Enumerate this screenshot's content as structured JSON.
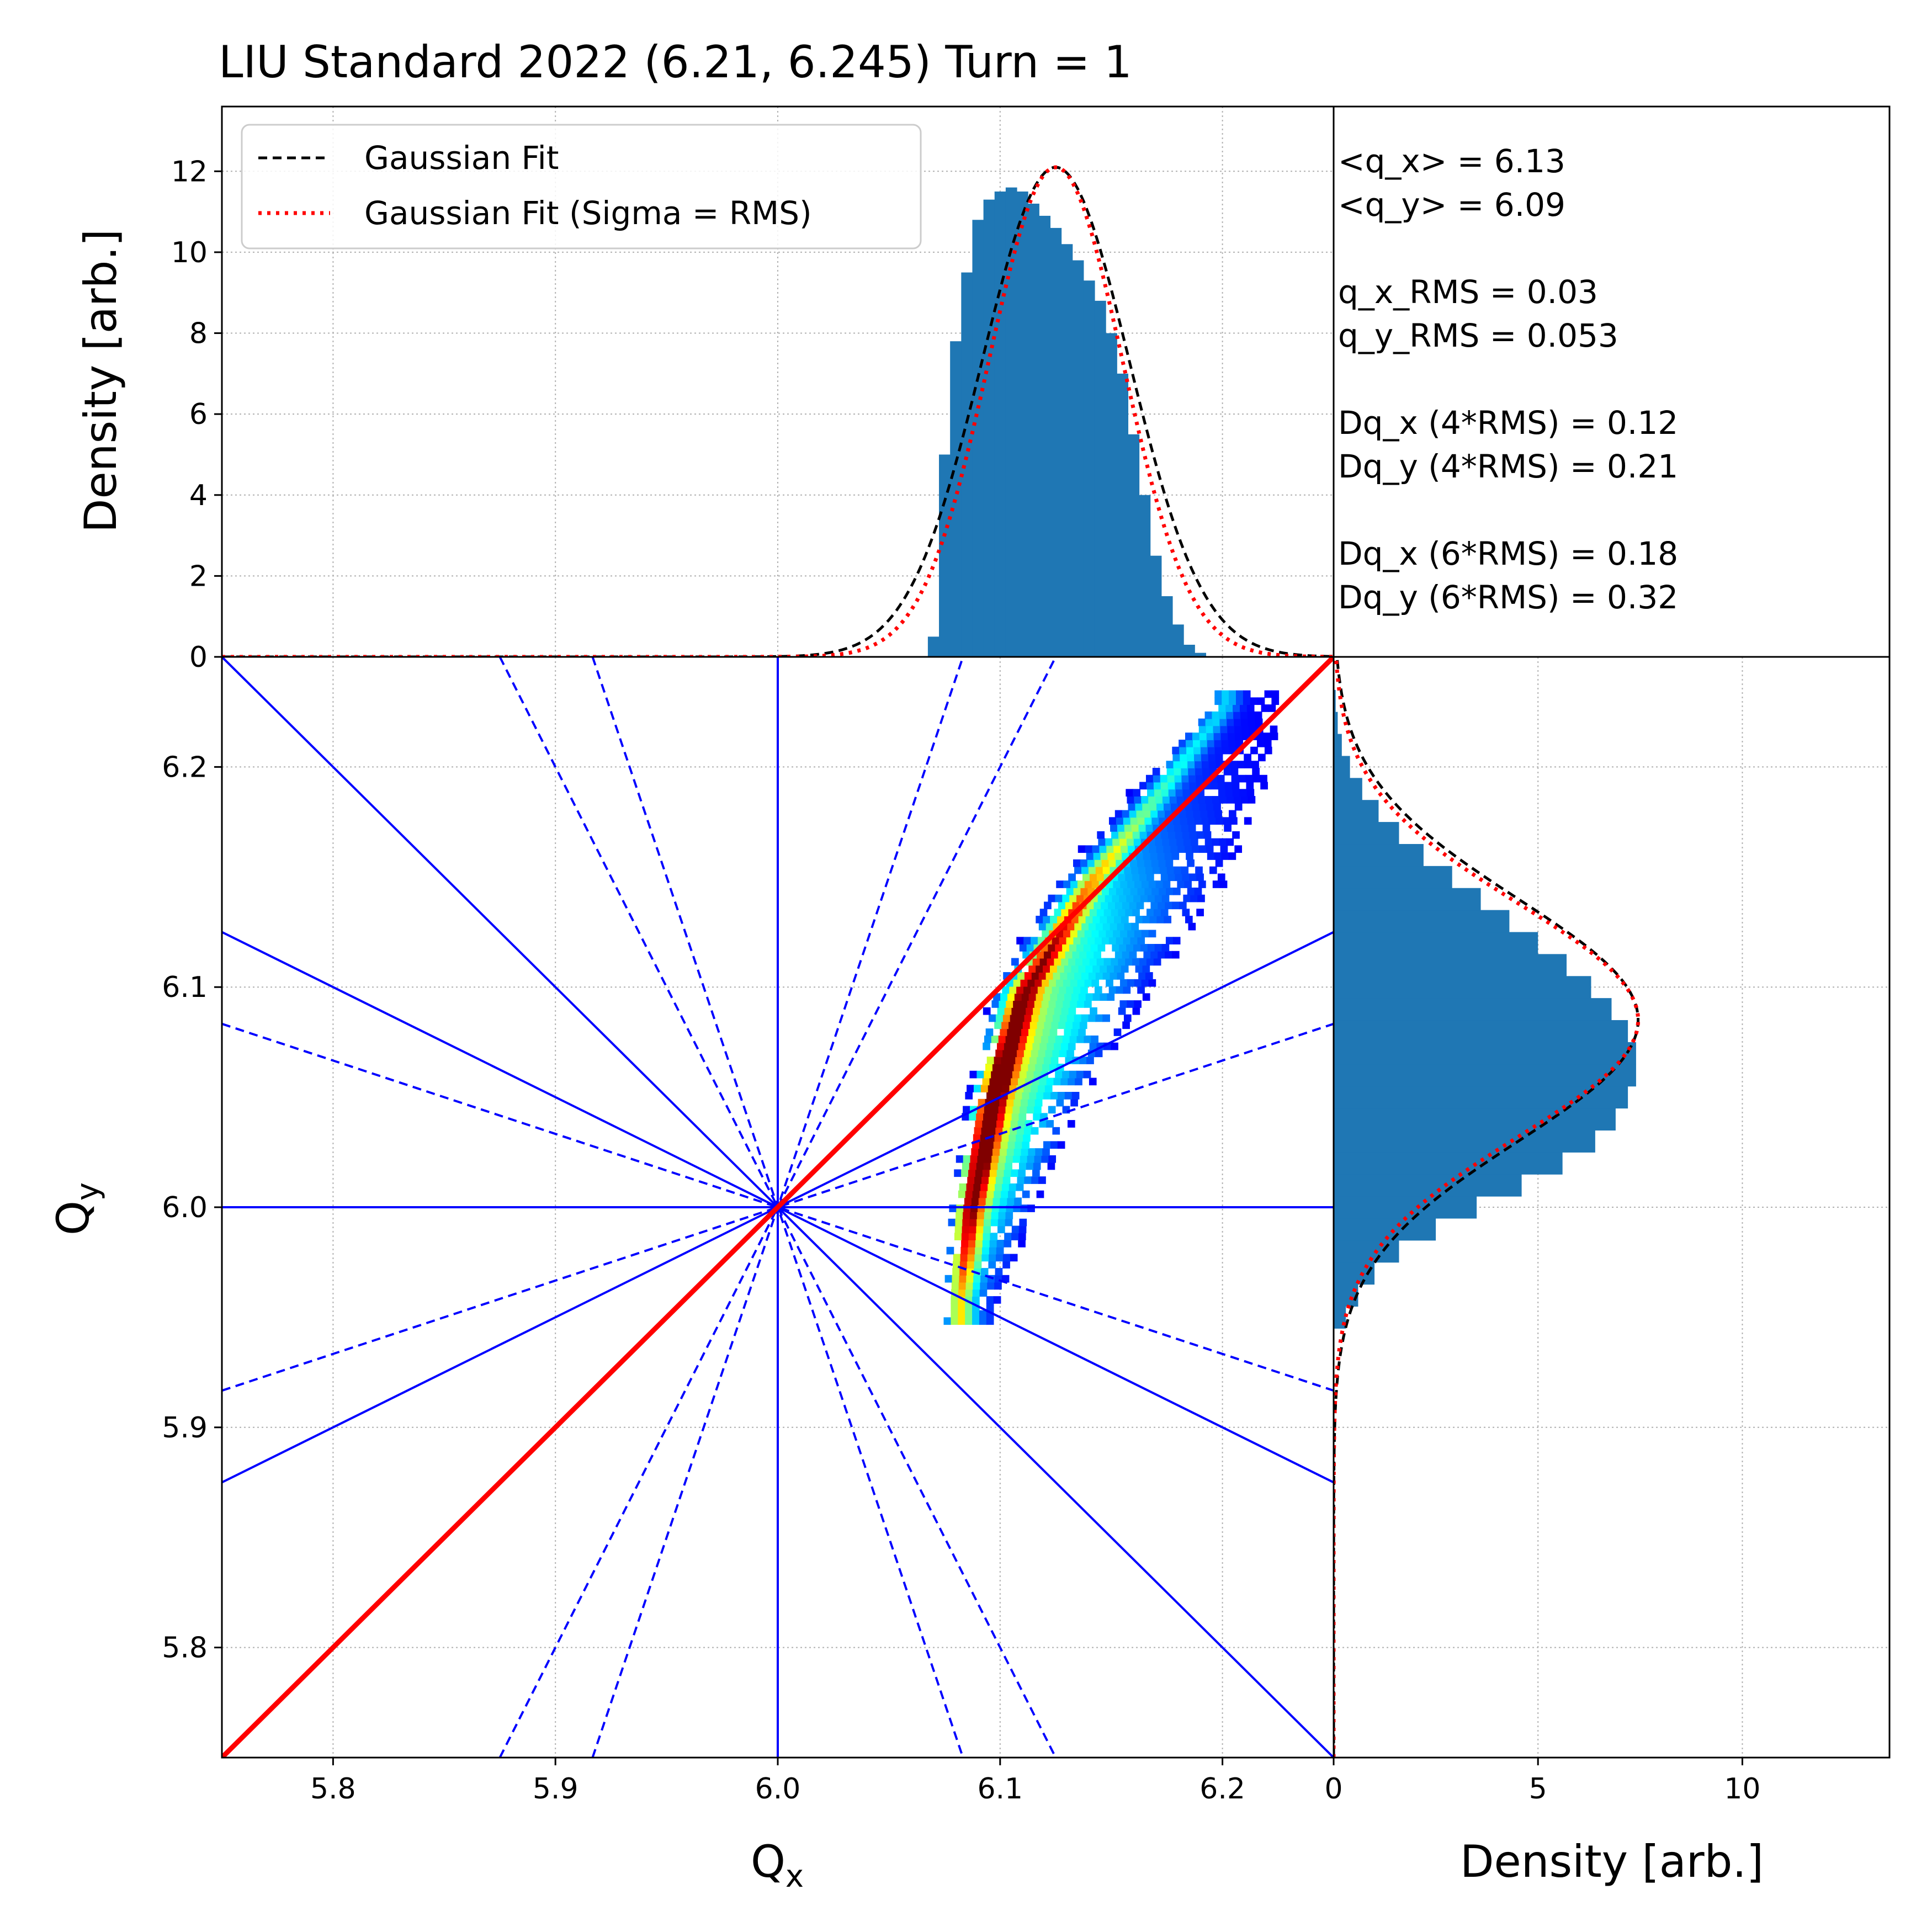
{
  "chart_data": [
    {
      "panel": "top-histogram",
      "type": "histogram",
      "title": "LIU Standard 2022 (6.21, 6.245) Turn = 1",
      "xlabel": "",
      "ylabel": "Density [arb.]",
      "xlim": [
        5.75,
        6.25
      ],
      "ylim": [
        0,
        13.6
      ],
      "yticks": [
        0,
        2,
        4,
        6,
        8,
        10,
        12
      ],
      "grid": true,
      "bar_color": "#1f77b4",
      "histogram": {
        "x": [
          6.07,
          6.075,
          6.08,
          6.085,
          6.09,
          6.095,
          6.1,
          6.105,
          6.11,
          6.115,
          6.12,
          6.125,
          6.13,
          6.135,
          6.14,
          6.145,
          6.15,
          6.155,
          6.16,
          6.165,
          6.17,
          6.175,
          6.18,
          6.185,
          6.19
        ],
        "values": [
          0.5,
          5.0,
          7.8,
          9.5,
          10.8,
          11.3,
          11.5,
          11.6,
          11.5,
          11.2,
          10.9,
          10.6,
          10.2,
          9.8,
          9.3,
          8.8,
          8.0,
          7.0,
          5.5,
          4.0,
          2.5,
          1.5,
          0.8,
          0.3,
          0.1
        ]
      },
      "series": [
        {
          "name": "Gaussian Fit",
          "style": "dashed",
          "color": "#000000",
          "mean": 6.125,
          "sigma": 0.033,
          "amplitude": 12.1
        },
        {
          "name": "Gaussian Fit (Sigma = RMS)",
          "style": "dotted",
          "color": "#ff0000",
          "mean": 6.125,
          "sigma": 0.03,
          "amplitude": 12.1
        }
      ],
      "legend": "top-left"
    },
    {
      "panel": "main-footprint",
      "type": "heatmap",
      "xlabel": "Q",
      "xlabel_sub": "x",
      "ylabel": "Q",
      "ylabel_sub": "y",
      "xlim": [
        5.75,
        6.25
      ],
      "ylim": [
        5.75,
        6.25
      ],
      "xticks": [
        5.8,
        5.9,
        6.0,
        6.1,
        6.2
      ],
      "yticks": [
        5.8,
        5.9,
        6.0,
        6.1,
        6.2
      ],
      "grid": true,
      "colormap": "jet",
      "tune_footprint": {
        "ridge": [
          [
            6.08,
            5.96
          ],
          [
            6.085,
            6.0
          ],
          [
            6.095,
            6.05
          ],
          [
            6.11,
            6.1
          ],
          [
            6.14,
            6.15
          ],
          [
            6.17,
            6.19
          ],
          [
            6.2,
            6.23
          ]
        ],
        "half_width_x": [
          0.012,
          0.018,
          0.025,
          0.035,
          0.038,
          0.03,
          0.015
        ]
      },
      "resonance_lines": [
        {
          "style": "solid",
          "color": "#0000ff",
          "segments": [
            [
              [
                6.0,
                5.75
              ],
              [
                6.0,
                6.25
              ]
            ],
            [
              [
                5.75,
                6.0
              ],
              [
                6.25,
                6.0
              ]
            ],
            [
              [
                5.75,
                6.25
              ],
              [
                6.25,
                5.75
              ]
            ],
            [
              [
                5.75,
                6.125
              ],
              [
                6.25,
                5.875
              ]
            ],
            [
              [
                5.75,
                5.875
              ],
              [
                6.25,
                6.125
              ]
            ]
          ]
        },
        {
          "style": "dashed",
          "color": "#0000ff",
          "segments": [
            [
              [
                5.875,
                6.25
              ],
              [
                6.125,
                5.75
              ]
            ],
            [
              [
                5.875,
                5.75
              ],
              [
                6.125,
                6.25
              ]
            ],
            [
              [
                5.9167,
                6.25
              ],
              [
                6.0833,
                5.75
              ]
            ],
            [
              [
                5.9167,
                5.75
              ],
              [
                6.0833,
                6.25
              ]
            ],
            [
              [
                5.75,
                6.0833
              ],
              [
                6.25,
                5.9167
              ]
            ],
            [
              [
                5.75,
                5.9167
              ],
              [
                6.25,
                6.0833
              ]
            ]
          ]
        },
        {
          "style": "solid-thick",
          "color": "#ff0000",
          "segments": [
            [
              [
                5.75,
                5.75
              ],
              [
                6.25,
                6.25
              ]
            ]
          ]
        }
      ]
    },
    {
      "panel": "right-histogram",
      "type": "histogram",
      "orientation": "horizontal",
      "xlabel": "Density [arb.]",
      "ylabel": "",
      "xlim": [
        0,
        13.6
      ],
      "ylim": [
        5.75,
        6.25
      ],
      "xticks": [
        0,
        5,
        10
      ],
      "grid": true,
      "bar_color": "#1f77b4",
      "histogram": {
        "y": [
          5.95,
          5.96,
          5.97,
          5.98,
          5.99,
          6.0,
          6.01,
          6.02,
          6.03,
          6.04,
          6.05,
          6.06,
          6.07,
          6.08,
          6.09,
          6.1,
          6.11,
          6.12,
          6.13,
          6.14,
          6.15,
          6.16,
          6.17,
          6.18,
          6.19,
          6.2,
          6.21,
          6.22,
          6.23
        ],
        "values": [
          0.3,
          0.6,
          1.0,
          1.6,
          2.5,
          3.5,
          4.6,
          5.6,
          6.4,
          6.9,
          7.2,
          7.4,
          7.4,
          7.2,
          6.8,
          6.3,
          5.7,
          5.0,
          4.3,
          3.6,
          2.9,
          2.2,
          1.6,
          1.1,
          0.7,
          0.4,
          0.2,
          0.1,
          0.05
        ]
      },
      "series": [
        {
          "name": "Gaussian Fit",
          "style": "dashed",
          "color": "#000000",
          "mean": 6.085,
          "sigma": 0.055,
          "amplitude": 7.45
        },
        {
          "name": "Gaussian Fit (Sigma = RMS)",
          "style": "dotted",
          "color": "#ff0000",
          "mean": 6.085,
          "sigma": 0.053,
          "amplitude": 7.45
        }
      ]
    }
  ],
  "stats": [
    "<q_x> = 6.13",
    "<q_y> = 6.09",
    "",
    "q_x_RMS = 0.03",
    "q_y_RMS = 0.053",
    "",
    "Dq_x (4*RMS) = 0.12",
    "Dq_y (4*RMS) = 0.21",
    "",
    "Dq_x (6*RMS) = 0.18",
    "Dq_y (6*RMS) = 0.32"
  ]
}
